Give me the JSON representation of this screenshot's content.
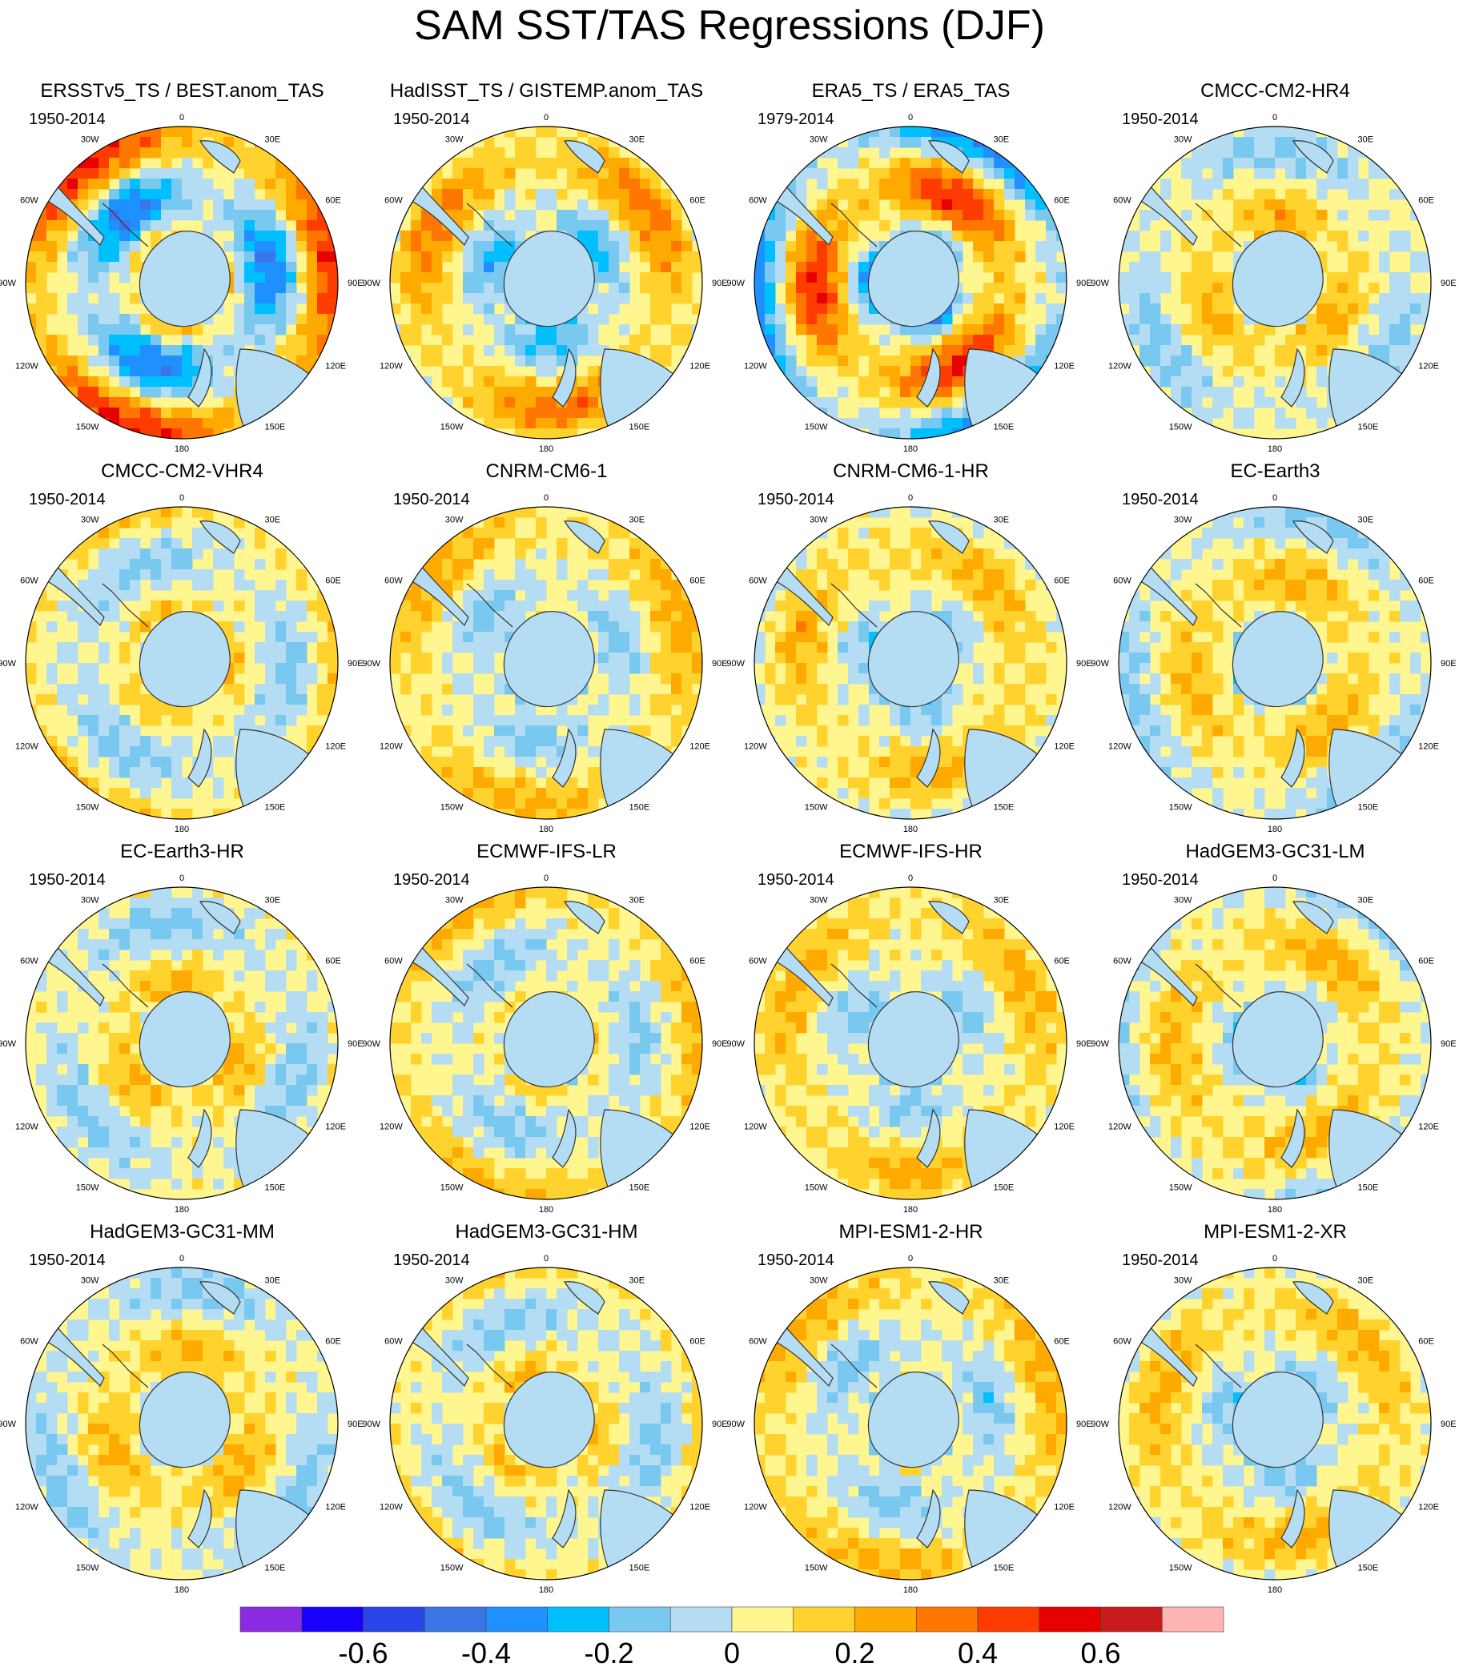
{
  "figure": {
    "title": "SAM SST/TAS Regressions (DJF)"
  },
  "map_labels": {
    "top": "0",
    "bottom": "180",
    "left": [
      "30W",
      "60W",
      "90W",
      "120W",
      "150W"
    ],
    "right": [
      "30E",
      "60E",
      "90E",
      "120E",
      "150E"
    ]
  },
  "panels": [
    {
      "title": "ERSSTv5_TS / BEST.anom_TAS",
      "years": "1950-2014"
    },
    {
      "title": "HadISST_TS / GISTEMP.anom_TAS",
      "years": "1950-2014"
    },
    {
      "title": "ERA5_TS / ERA5_TAS",
      "years": "1979-2014"
    },
    {
      "title": "CMCC-CM2-HR4",
      "years": "1950-2014"
    },
    {
      "title": "CMCC-CM2-VHR4",
      "years": "1950-2014"
    },
    {
      "title": "CNRM-CM6-1",
      "years": "1950-2014"
    },
    {
      "title": "CNRM-CM6-1-HR",
      "years": "1950-2014"
    },
    {
      "title": "EC-Earth3",
      "years": "1950-2014"
    },
    {
      "title": "EC-Earth3-HR",
      "years": "1950-2014"
    },
    {
      "title": "ECMWF-IFS-LR",
      "years": "1950-2014"
    },
    {
      "title": "ECMWF-IFS-HR",
      "years": "1950-2014"
    },
    {
      "title": "HadGEM3-GC31-LM",
      "years": "1950-2014"
    },
    {
      "title": "HadGEM3-GC31-MM",
      "years": "1950-2014"
    },
    {
      "title": "HadGEM3-GC31-HM",
      "years": "1950-2014"
    },
    {
      "title": "MPI-ESM1-2-HR",
      "years": "1950-2014"
    },
    {
      "title": "MPI-ESM1-2-XR",
      "years": "1950-2014"
    }
  ],
  "colorbar": {
    "colors": [
      "#8a2be2",
      "#1a00ff",
      "#2a45e8",
      "#3a76e8",
      "#1e90ff",
      "#00bfff",
      "#78c8f0",
      "#b4dcf2",
      "#fff68f",
      "#ffd22e",
      "#ffaa00",
      "#ff7600",
      "#ff3c00",
      "#e60000",
      "#c81c1c",
      "#ffb4b4"
    ],
    "tick_labels": [
      "-0.6",
      "-0.4",
      "-0.2",
      "0",
      "0.2",
      "0.4",
      "0.6"
    ]
  }
}
